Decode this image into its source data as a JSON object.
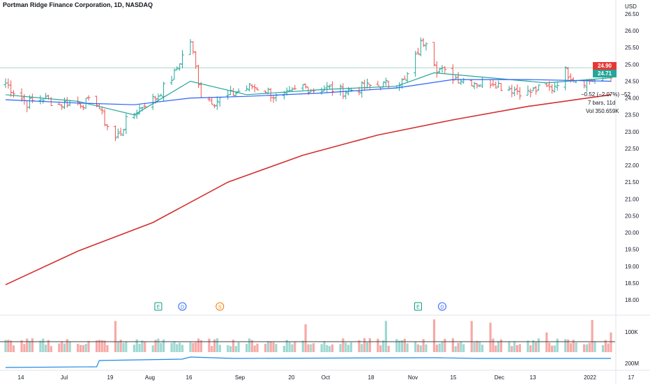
{
  "header": {
    "title": "Portman Ridge Finance Corporation, 1D, NASDAQ",
    "currency": "USD"
  },
  "price_tags": {
    "high": "24.90",
    "last": "24.71"
  },
  "measure": {
    "change": "−0.52 (−2.07%) −52",
    "span": "7 bars, 11d",
    "volume": "Vol 350.659K"
  },
  "colors": {
    "up": "#26a69a",
    "down": "#ef5350",
    "ma_fast": "#26a69a",
    "ma_mid": "#2962ff",
    "ma_slow": "#d32f2f",
    "volume_ma": "#424242",
    "highlight": "#e53935"
  },
  "events": [
    {
      "date": "2021-08-04",
      "letter": "E",
      "kind": "earnings"
    },
    {
      "date": "2021-08-13",
      "letter": "D",
      "kind": "dividend"
    },
    {
      "date": "2021-08-27",
      "letter": "S",
      "kind": "split"
    },
    {
      "date": "2021-11-09",
      "letter": "E",
      "kind": "earnings"
    },
    {
      "date": "2021-11-18",
      "letter": "D",
      "kind": "dividend"
    }
  ],
  "chart_data": {
    "type": "candlestick",
    "title": "Portman Ridge Finance Corporation, 1D, NASDAQ",
    "y_axis": {
      "ticks": [
        "26.50",
        "26.00",
        "25.50",
        "25.00",
        "24.50",
        "24.00",
        "23.50",
        "23.00",
        "22.50",
        "22.00",
        "21.50",
        "21.00",
        "20.50",
        "20.00",
        "19.50",
        "19.00",
        "18.50",
        "18.00"
      ],
      "range": [
        17.7,
        26.8
      ],
      "unit": "USD"
    },
    "x_axis": {
      "ticks": [
        "14",
        "Jul",
        "19",
        "Aug",
        "16",
        "Sep",
        "20",
        "Oct",
        "18",
        "Nov",
        "15",
        "Dec",
        "13",
        "2022",
        "17"
      ]
    },
    "volume_axis": {
      "ticks": [
        "100K"
      ]
    },
    "lower_axis": {
      "ticks": [
        "200M"
      ]
    },
    "date_range": [
      "2021-06-08",
      "2022-01-20"
    ],
    "last_close": 24.71,
    "high_line": 24.9,
    "price_anchors": [
      [
        "2021-06-08",
        24.45
      ],
      [
        "2021-06-11",
        24.2
      ],
      [
        "2021-06-16",
        23.85
      ],
      [
        "2021-06-22",
        24.0
      ],
      [
        "2021-06-28",
        23.8
      ],
      [
        "2021-07-02",
        23.9
      ],
      [
        "2021-07-07",
        23.85
      ],
      [
        "2021-07-12",
        23.9
      ],
      [
        "2021-07-15",
        23.3
      ],
      [
        "2021-07-19",
        22.8
      ],
      [
        "2021-07-21",
        23.0
      ],
      [
        "2021-07-23",
        23.3
      ],
      [
        "2021-07-27",
        23.6
      ],
      [
        "2021-07-30",
        23.85
      ],
      [
        "2021-08-03",
        24.0
      ],
      [
        "2021-08-06",
        24.3
      ],
      [
        "2021-08-10",
        24.7
      ],
      [
        "2021-08-12",
        25.1
      ],
      [
        "2021-08-16",
        25.7
      ],
      [
        "2021-08-18",
        24.9
      ],
      [
        "2021-08-20",
        24.1
      ],
      [
        "2021-08-25",
        23.9
      ],
      [
        "2021-08-30",
        24.05
      ],
      [
        "2021-09-03",
        24.2
      ],
      [
        "2021-09-08",
        24.35
      ],
      [
        "2021-09-13",
        24.25
      ],
      [
        "2021-09-17",
        24.0
      ],
      [
        "2021-09-22",
        24.1
      ],
      [
        "2021-09-27",
        24.35
      ],
      [
        "2021-10-01",
        24.25
      ],
      [
        "2021-10-06",
        24.3
      ],
      [
        "2021-10-12",
        24.2
      ],
      [
        "2021-10-18",
        24.3
      ],
      [
        "2021-10-22",
        24.35
      ],
      [
        "2021-10-28",
        24.4
      ],
      [
        "2021-11-01",
        24.45
      ],
      [
        "2021-11-04",
        24.5
      ],
      [
        "2021-11-08",
        25.2
      ],
      [
        "2021-11-10",
        25.6
      ],
      [
        "2021-11-12",
        25.75
      ],
      [
        "2021-11-16",
        24.9
      ],
      [
        "2021-11-19",
        24.75
      ],
      [
        "2021-11-23",
        24.6
      ],
      [
        "2021-11-29",
        24.5
      ],
      [
        "2021-12-02",
        24.45
      ],
      [
        "2021-12-07",
        24.5
      ],
      [
        "2021-12-10",
        24.35
      ],
      [
        "2021-12-15",
        24.25
      ],
      [
        "2021-12-20",
        24.15
      ],
      [
        "2021-12-23",
        24.25
      ],
      [
        "2021-12-29",
        24.3
      ],
      [
        "2022-01-03",
        24.8
      ],
      [
        "2022-01-06",
        24.6
      ],
      [
        "2022-01-11",
        24.5
      ],
      [
        "2022-01-14",
        24.55
      ],
      [
        "2022-01-18",
        24.65
      ],
      [
        "2022-01-20",
        24.71
      ]
    ],
    "moving_averages": [
      {
        "color": "#26a69a",
        "values": [
          [
            "2021-06-08",
            24.1
          ],
          [
            "2021-07-05",
            23.9
          ],
          [
            "2021-07-26",
            23.5
          ],
          [
            "2021-08-16",
            24.5
          ],
          [
            "2021-09-06",
            24.1
          ],
          [
            "2021-10-04",
            24.25
          ],
          [
            "2021-11-01",
            24.35
          ],
          [
            "2021-11-15",
            24.75
          ],
          [
            "2021-12-06",
            24.6
          ],
          [
            "2021-12-27",
            24.45
          ],
          [
            "2022-01-20",
            24.6
          ]
        ]
      },
      {
        "color": "#2962ff",
        "values": [
          [
            "2021-06-08",
            23.95
          ],
          [
            "2021-07-05",
            23.85
          ],
          [
            "2021-07-26",
            23.8
          ],
          [
            "2021-08-16",
            24.0
          ],
          [
            "2021-09-06",
            24.05
          ],
          [
            "2021-10-04",
            24.15
          ],
          [
            "2021-11-01",
            24.3
          ],
          [
            "2021-11-22",
            24.55
          ],
          [
            "2021-12-20",
            24.55
          ],
          [
            "2022-01-20",
            24.5
          ]
        ]
      },
      {
        "color": "#d32f2f",
        "values": [
          [
            "2021-06-08",
            18.45
          ],
          [
            "2021-07-05",
            19.45
          ],
          [
            "2021-08-02",
            20.3
          ],
          [
            "2021-08-30",
            21.5
          ],
          [
            "2021-09-27",
            22.3
          ],
          [
            "2021-10-25",
            22.9
          ],
          [
            "2021-11-22",
            23.35
          ],
          [
            "2021-12-20",
            23.75
          ],
          [
            "2022-01-20",
            24.1
          ]
        ]
      }
    ],
    "volume_spikes": [
      [
        "2021-07-19",
        0.95
      ],
      [
        "2021-09-28",
        0.85
      ],
      [
        "2021-10-28",
        0.95
      ],
      [
        "2021-11-15",
        1.0
      ],
      [
        "2021-11-29",
        0.95
      ],
      [
        "2021-12-06",
        0.9
      ],
      [
        "2021-12-27",
        0.6
      ],
      [
        "2022-01-13",
        0.98
      ],
      [
        "2022-01-20",
        0.6
      ]
    ],
    "grid": false,
    "legend": "none"
  }
}
